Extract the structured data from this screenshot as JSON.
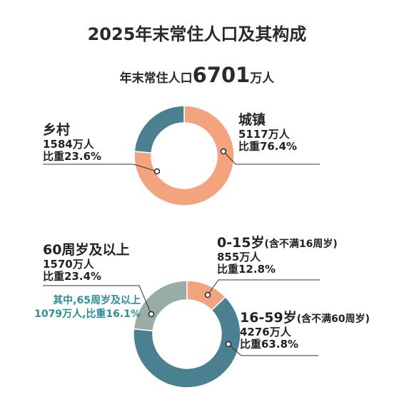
{
  "title": "2025年末常住人口及其构成",
  "subtitle": {
    "prefix": "年末常住人口",
    "number": "6701",
    "suffix": "万人"
  },
  "colors": {
    "orange": "#f3a37e",
    "blue": "#4a8090",
    "gray": "#9aada5",
    "note_teal": "#2f8d98"
  },
  "chart_data": [
    {
      "type": "pie",
      "style": "donut",
      "unit": "万人",
      "slices": [
        {
          "name": "城镇",
          "value": 5117,
          "share": 76.4,
          "color": "#f3a37e"
        },
        {
          "name": "乡村",
          "value": 1584,
          "share": 23.6,
          "color": "#4a8090"
        }
      ]
    },
    {
      "type": "pie",
      "style": "donut",
      "unit": "万人",
      "slices": [
        {
          "name": "0-15岁",
          "value": 855,
          "share": 12.8,
          "color": "#f3a37e"
        },
        {
          "name": "16-59岁",
          "value": 4276,
          "share": 63.8,
          "color": "#4a8090"
        },
        {
          "name": "60周岁及以上",
          "value": 1570,
          "share": 23.4,
          "color": "#9aada5"
        }
      ]
    }
  ],
  "labels": {
    "urban": {
      "name": "城镇",
      "amount": "5117万人",
      "ratio": "比重76.4%"
    },
    "rural": {
      "name": "乡村",
      "amount": "1584万人",
      "ratio": "比重23.6%"
    },
    "age0": {
      "name": "0-15岁",
      "note": "(含不满16周岁)",
      "amount": "855万人",
      "ratio": "比重12.8%"
    },
    "age16": {
      "name": "16-59岁",
      "note": "(含不满60周岁)",
      "amount": "4276万人",
      "ratio": "比重63.8%"
    },
    "age60": {
      "name": "60周岁及以上",
      "amount": "1570万人",
      "ratio": "比重23.4%"
    },
    "age65": {
      "line1": "其中,65周岁及以上",
      "line2": "1079万人,比重16.1%"
    }
  }
}
